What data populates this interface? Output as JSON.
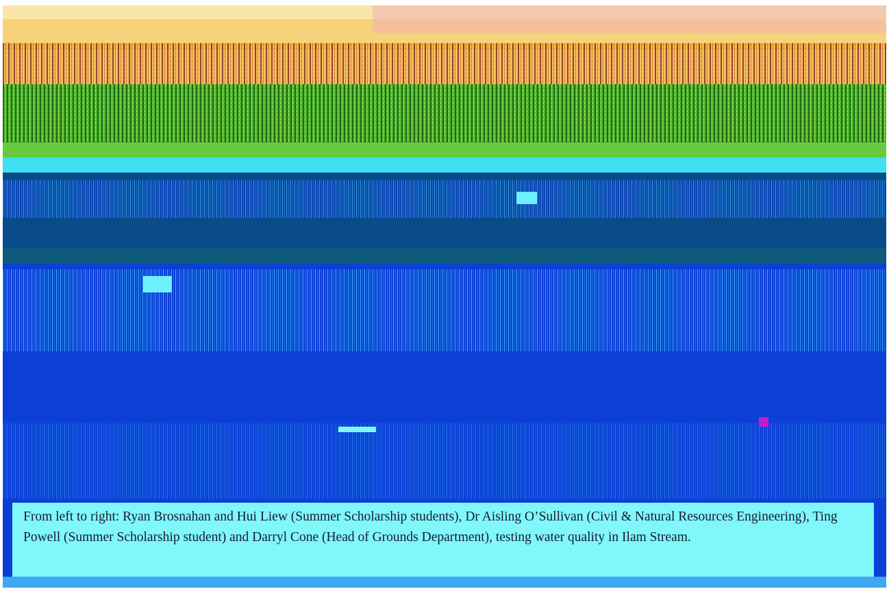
{
  "caption": {
    "text": "From left to right: Ryan Brosnahan and Hui Liew (Summer Scholarship students), Dr Aisling O’Sullivan (Civil & Natural Resources Engineering), Ting Powell (Summer Scholarship student) and Darryl Cone (Head of Grounds Department), testing water quality in Ilam Stream."
  },
  "colors": {
    "sky_top": "#f6d27a",
    "autumn_foliage": "#f0b04a",
    "foliage_green": "#5fc33a",
    "bank_cyan": "#3fe0f0",
    "stream_dark": "#0a4c8a",
    "stream_blue": "#0b3fd6",
    "caption_bg": "#7ff7fb",
    "caption_text": "#1a1a2e"
  }
}
